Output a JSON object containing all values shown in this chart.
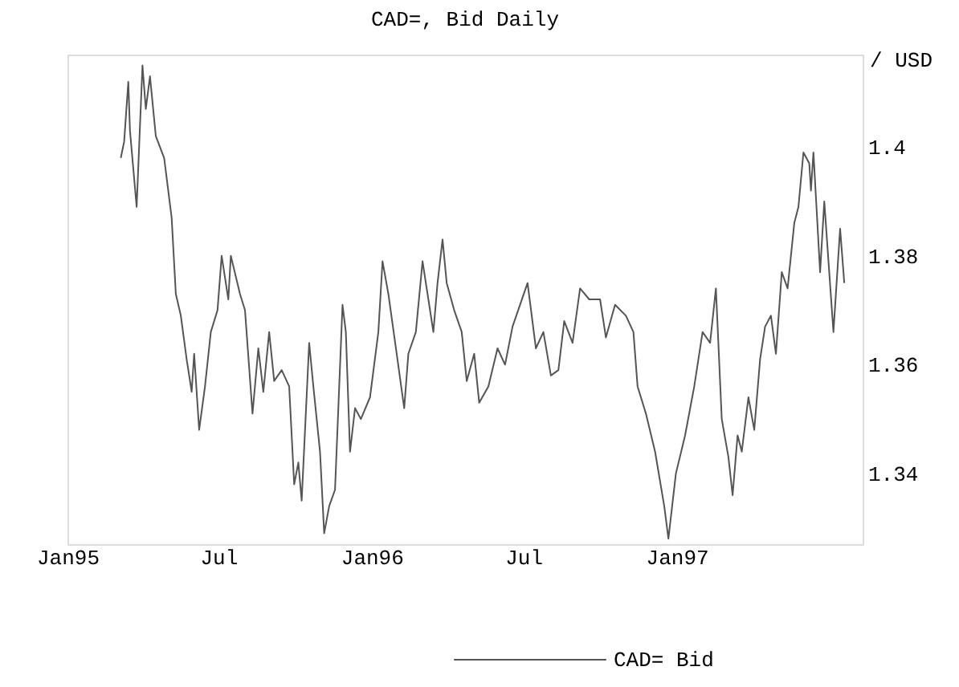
{
  "chart_data": {
    "type": "line",
    "title": "CAD=, Bid Daily",
    "ylabel": "/ USD",
    "x": [
      "1995-03-06",
      "1995-03-10",
      "1995-03-15",
      "1995-03-17",
      "1995-03-25",
      "1995-04-01",
      "1995-04-05",
      "1995-04-10",
      "1995-04-17",
      "1995-04-27",
      "1995-05-06",
      "1995-05-11",
      "1995-05-17",
      "1995-05-24",
      "1995-05-30",
      "1995-06-02",
      "1995-06-08",
      "1995-06-15",
      "1995-06-22",
      "1995-06-30",
      "1995-07-05",
      "1995-07-13",
      "1995-07-16",
      "1995-07-27",
      "1995-08-02",
      "1995-08-11",
      "1995-08-18",
      "1995-08-24",
      "1995-08-31",
      "1995-09-06",
      "1995-09-15",
      "1995-09-24",
      "1995-09-30",
      "1995-10-05",
      "1995-10-09",
      "1995-10-18",
      "1995-10-23",
      "1995-10-31",
      "1995-11-05",
      "1995-11-11",
      "1995-11-18",
      "1995-11-27",
      "1995-12-01",
      "1995-12-06",
      "1995-12-12",
      "1995-12-19",
      "1995-12-30",
      "1996-01-09",
      "1996-01-14",
      "1996-01-21",
      "1996-01-31",
      "1996-02-09",
      "1996-02-14",
      "1996-02-23",
      "1996-03-02",
      "1996-03-09",
      "1996-03-15",
      "1996-03-20",
      "1996-03-26",
      "1996-03-31",
      "1996-04-09",
      "1996-04-18",
      "1996-04-24",
      "1996-05-03",
      "1996-05-09",
      "1996-05-20",
      "1996-05-31",
      "1996-06-09",
      "1996-06-18",
      "1996-07-06",
      "1996-07-16",
      "1996-07-25",
      "1996-08-03",
      "1996-08-12",
      "1996-08-19",
      "1996-08-29",
      "1996-09-07",
      "1996-09-18",
      "1996-10-01",
      "1996-10-08",
      "1996-10-19",
      "1996-11-01",
      "1996-11-10",
      "1996-11-15",
      "1996-11-25",
      "1996-12-06",
      "1996-12-17",
      "1996-12-22",
      "1996-12-31",
      "1997-01-11",
      "1997-01-22",
      "1997-02-01",
      "1997-02-10",
      "1997-02-17",
      "1997-02-24",
      "1997-03-04",
      "1997-03-09",
      "1997-03-15",
      "1997-03-20",
      "1997-03-28",
      "1997-04-04",
      "1997-04-11",
      "1997-04-17",
      "1997-04-24",
      "1997-04-30",
      "1997-05-07",
      "1997-05-14",
      "1997-05-22",
      "1997-05-27",
      "1997-06-02",
      "1997-06-09",
      "1997-06-11",
      "1997-06-14",
      "1997-06-22",
      "1997-06-27",
      "1997-07-08",
      "1997-07-16",
      "1997-07-21"
    ],
    "series": [
      {
        "name": "CAD= Bid",
        "color": "#555555",
        "values": [
          1.398,
          1.401,
          1.412,
          1.403,
          1.389,
          1.415,
          1.407,
          1.413,
          1.402,
          1.398,
          1.387,
          1.373,
          1.369,
          1.361,
          1.355,
          1.362,
          1.348,
          1.356,
          1.366,
          1.37,
          1.38,
          1.372,
          1.38,
          1.373,
          1.37,
          1.351,
          1.363,
          1.355,
          1.366,
          1.357,
          1.359,
          1.356,
          1.338,
          1.342,
          1.335,
          1.364,
          1.356,
          1.344,
          1.329,
          1.334,
          1.337,
          1.371,
          1.366,
          1.344,
          1.352,
          1.35,
          1.354,
          1.366,
          1.379,
          1.373,
          1.362,
          1.352,
          1.362,
          1.366,
          1.379,
          1.372,
          1.366,
          1.375,
          1.383,
          1.375,
          1.37,
          1.366,
          1.357,
          1.362,
          1.353,
          1.356,
          1.363,
          1.36,
          1.367,
          1.375,
          1.363,
          1.366,
          1.358,
          1.359,
          1.368,
          1.364,
          1.374,
          1.372,
          1.372,
          1.365,
          1.371,
          1.369,
          1.366,
          1.356,
          1.351,
          1.344,
          1.334,
          1.328,
          1.34,
          1.347,
          1.356,
          1.366,
          1.364,
          1.374,
          1.35,
          1.343,
          1.336,
          1.347,
          1.344,
          1.354,
          1.348,
          1.361,
          1.367,
          1.369,
          1.362,
          1.377,
          1.374,
          1.386,
          1.389,
          1.399,
          1.397,
          1.392,
          1.399,
          1.377,
          1.39,
          1.366,
          1.385,
          1.375
        ]
      }
    ],
    "xlim": [
      "1995-01-01",
      "1997-08-12"
    ],
    "xticks": [
      {
        "value": "1995-01-01",
        "label": "Jan95"
      },
      {
        "value": "1995-07-01",
        "label": "Jul"
      },
      {
        "value": "1996-01-01",
        "label": "Jan96"
      },
      {
        "value": "1996-07-01",
        "label": "Jul"
      },
      {
        "value": "1997-01-01",
        "label": "Jan97"
      }
    ],
    "ylim": [
      1.327,
      1.417
    ],
    "yticks": [
      1.34,
      1.36,
      1.38,
      1.4
    ],
    "grid": false,
    "legend": "bottom"
  }
}
